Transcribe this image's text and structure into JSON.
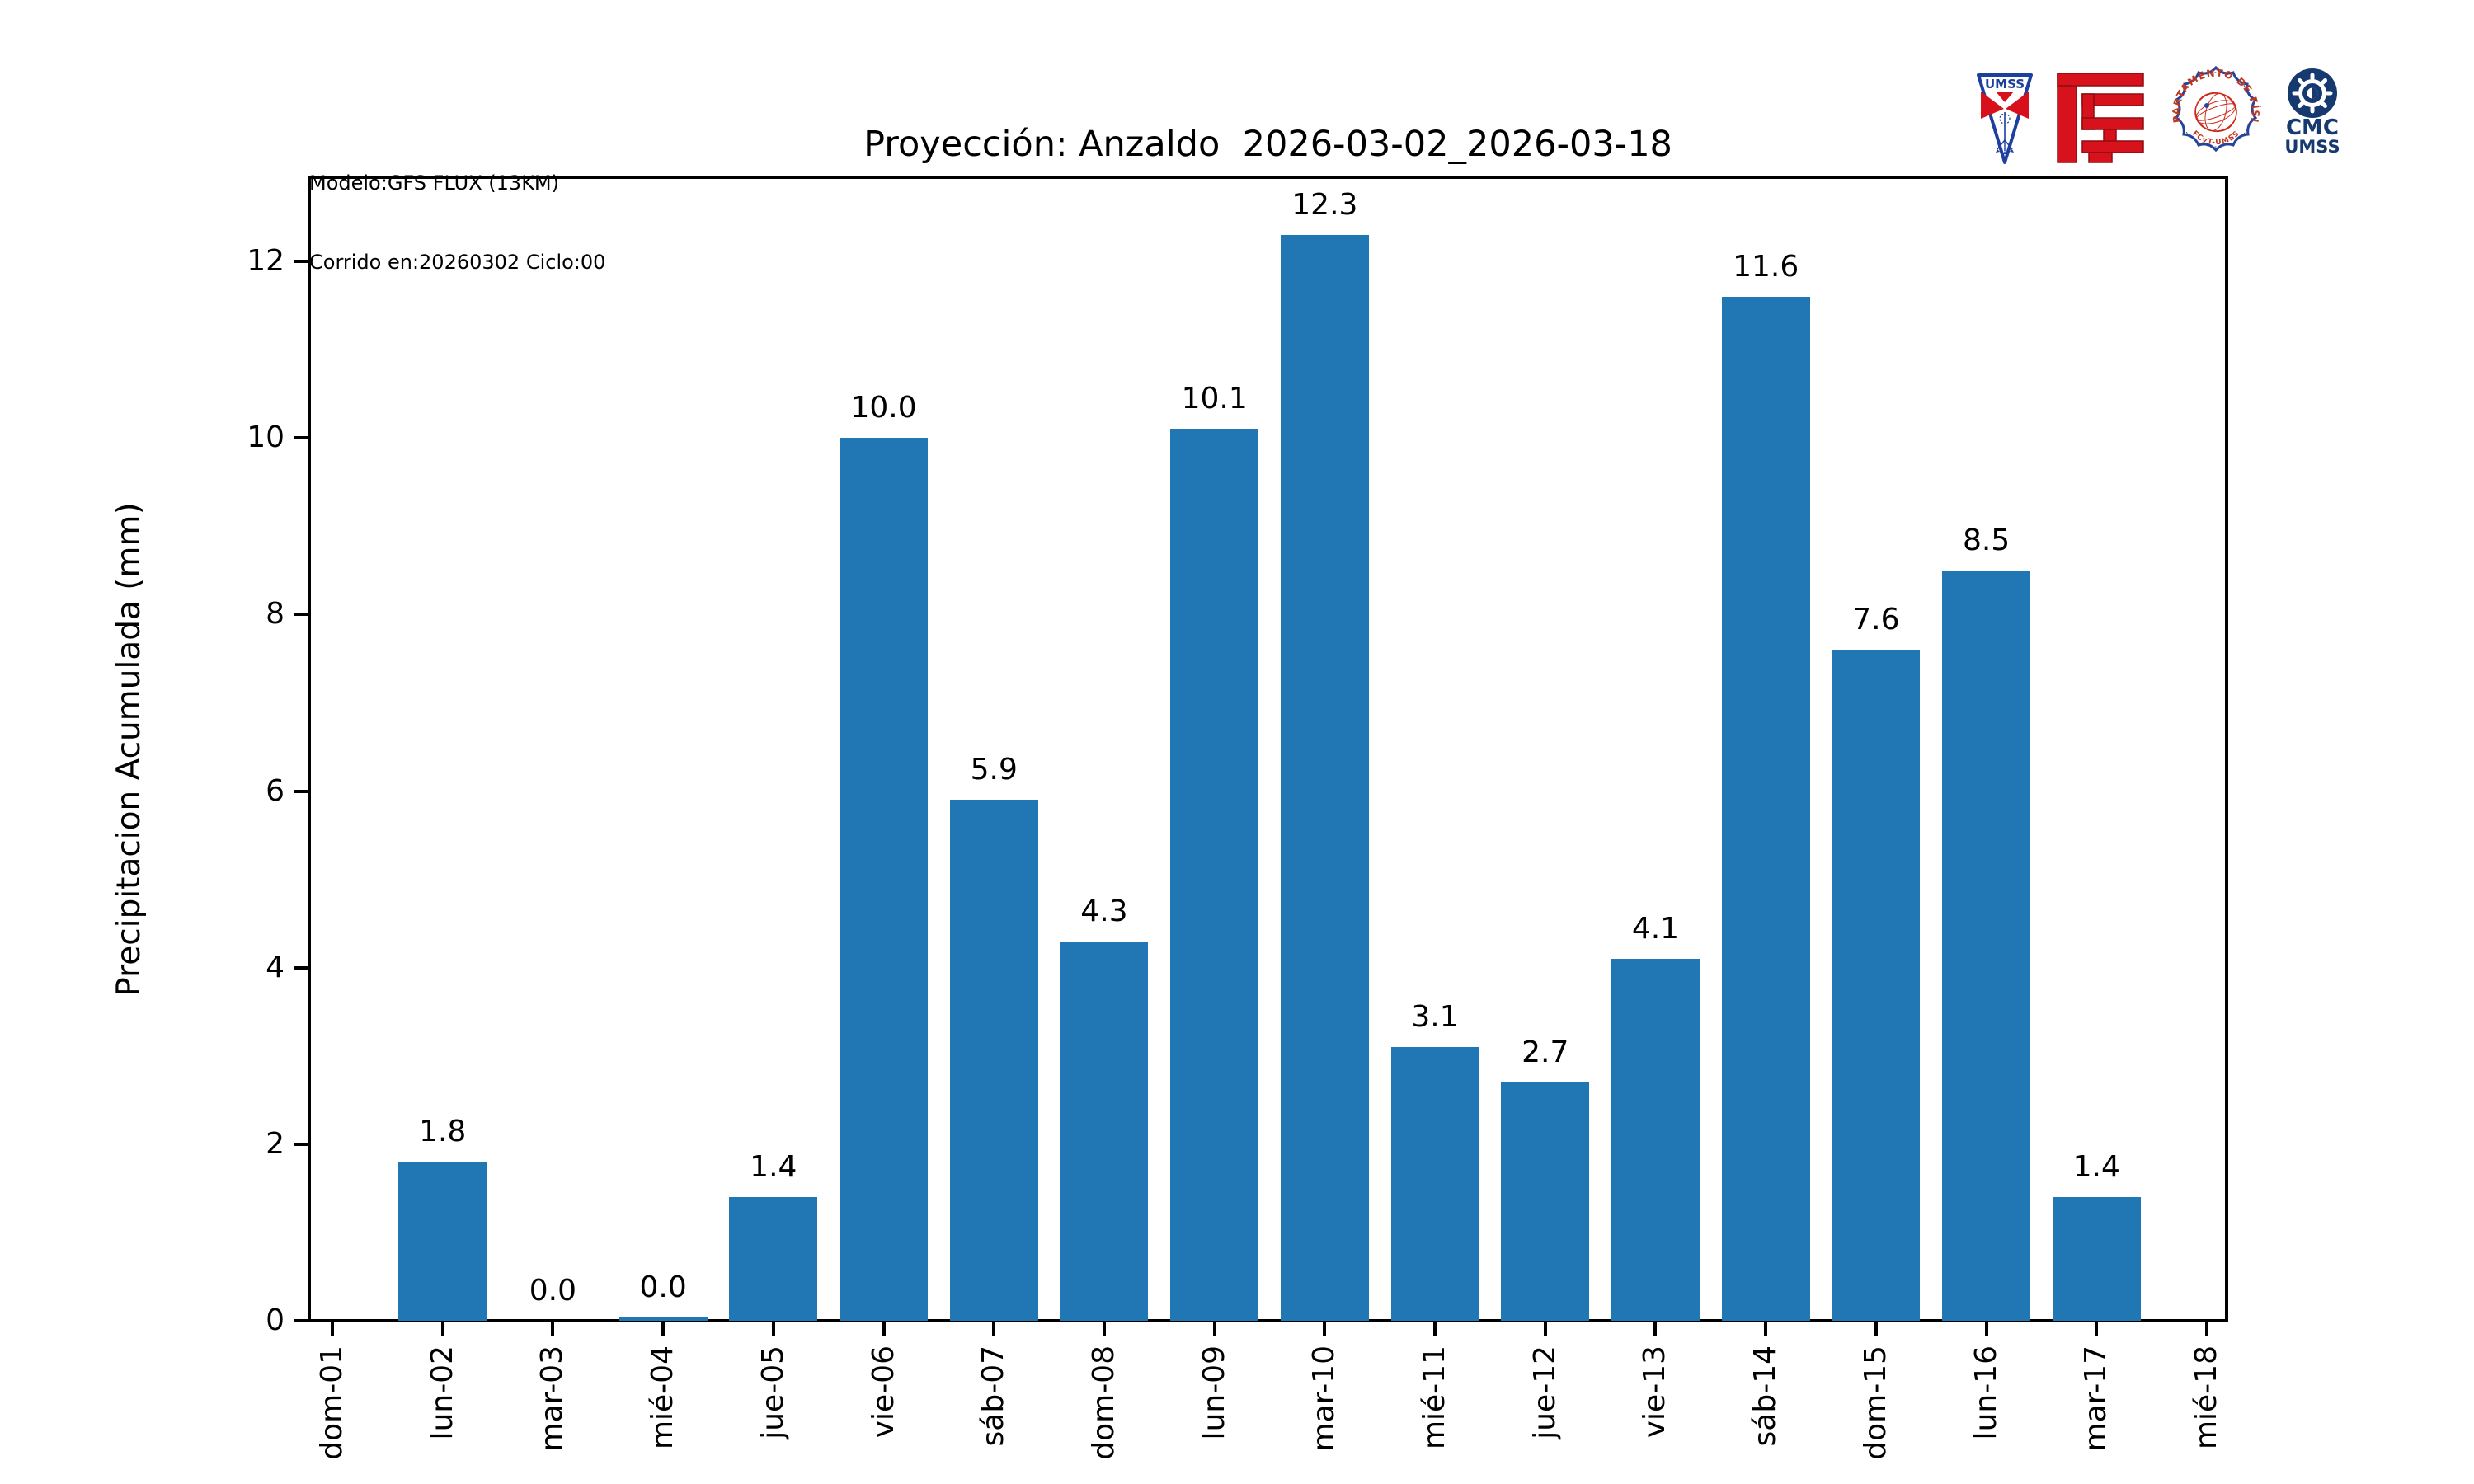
{
  "header": {
    "model_line1": "Modelo:GFS FLUX (13KM)",
    "model_line2": "Corrido en:20260302 Ciclo:00"
  },
  "logos": {
    "umss_pennant": {
      "text": "UMSS"
    },
    "fisica_badge": {
      "text_top": "DEPARTAMENTO DE FÍSICA",
      "text_bottom": "FCyT-UMSS"
    },
    "cmc": {
      "line1": "CMC",
      "line2": "UMSS"
    }
  },
  "chart_data": {
    "type": "bar",
    "title": "Proyección: Anzaldo  2026-03-02_2026-03-18",
    "xlabel": "",
    "ylabel": "Precipitacion Acumulada (mm)",
    "categories": [
      "dom-01",
      "lun-02",
      "mar-03",
      "mié-04",
      "jue-05",
      "vie-06",
      "sáb-07",
      "dom-08",
      "lun-09",
      "mar-10",
      "mié-11",
      "jue-12",
      "vie-13",
      "sáb-14",
      "dom-15",
      "lun-16",
      "mar-17",
      "mié-18"
    ],
    "values": [
      null,
      1.8,
      0.0,
      0.04,
      1.4,
      10.0,
      5.9,
      4.3,
      10.1,
      12.3,
      3.1,
      2.7,
      4.1,
      11.6,
      7.6,
      8.5,
      1.4,
      null
    ],
    "bar_labels": [
      "",
      "1.8",
      "0.0",
      "0.0",
      "1.4",
      "10.0",
      "5.9",
      "4.3",
      "10.1",
      "12.3",
      "3.1",
      "2.7",
      "4.1",
      "11.6",
      "7.6",
      "8.5",
      "1.4",
      ""
    ],
    "yticks": [
      0,
      2,
      4,
      6,
      8,
      10,
      12
    ],
    "ylim": [
      0,
      12.95
    ],
    "bar_color": "#2077b4",
    "grid": false,
    "legend": null
  }
}
